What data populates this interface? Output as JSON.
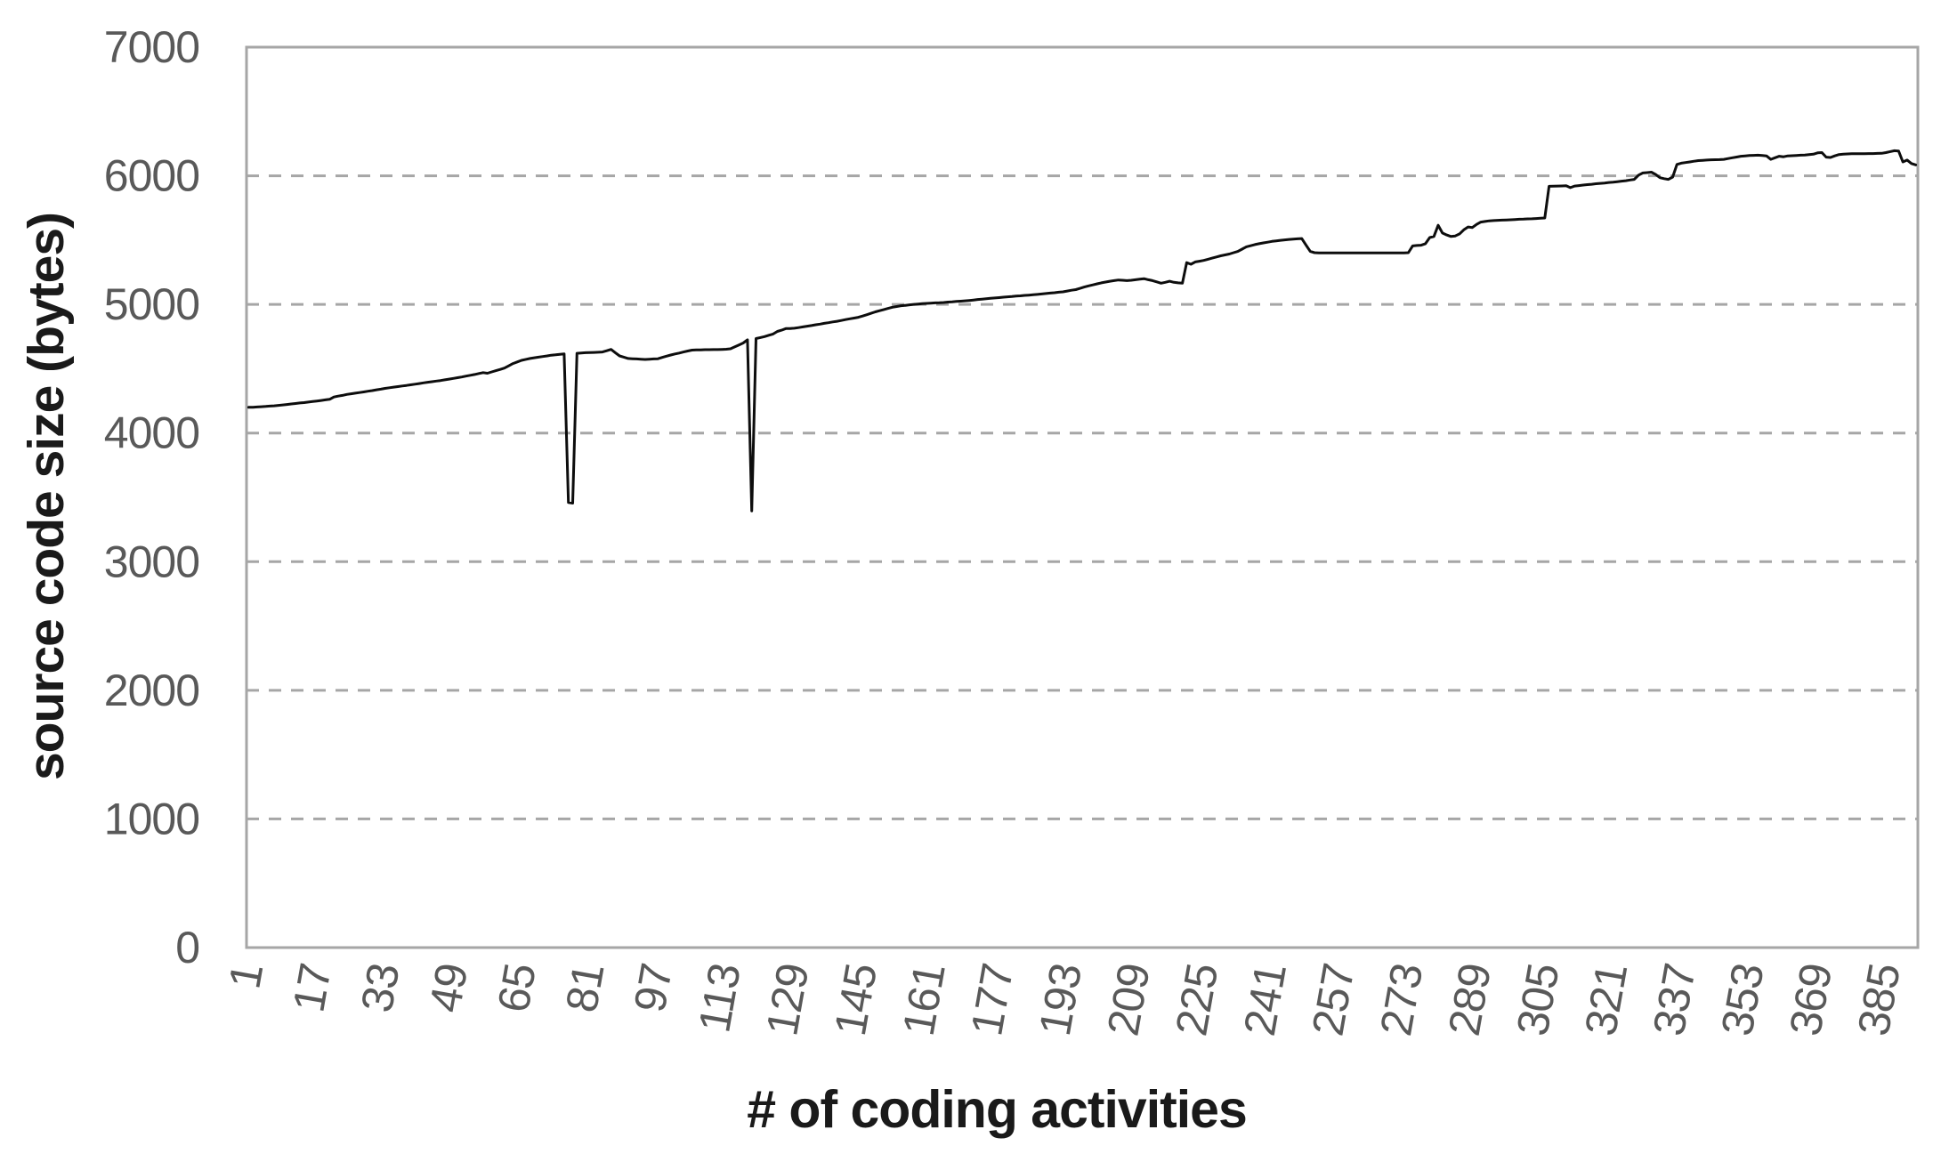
{
  "styles": {
    "background": "#ffffff",
    "line_color": "#0d0d0d",
    "grid_color": "#a6a6a6",
    "axis_color": "#a6a6a6",
    "tick_label_color": "#595959",
    "axis_title_color": "#1a1a1a"
  },
  "chart_data": {
    "type": "line",
    "title": "",
    "xlabel": "# of coding activities",
    "ylabel": "source code size (bytes)",
    "legend": "none",
    "grid": "horizontal-dashed",
    "ylim": [
      0,
      7000
    ],
    "y_ticks": [
      0,
      1000,
      2000,
      3000,
      4000,
      5000,
      6000,
      7000
    ],
    "x_tick_labels": [
      1,
      17,
      33,
      49,
      65,
      81,
      97,
      113,
      129,
      145,
      161,
      177,
      193,
      209,
      225,
      241,
      257,
      273,
      289,
      305,
      321,
      337,
      353,
      369,
      385
    ],
    "x_start": 1,
    "x_step": 1,
    "n_points": 392,
    "notable_features": {
      "start_value": 4200,
      "dip1": {
        "x": 76,
        "value": 3460
      },
      "dip2": {
        "x": 119,
        "value": 3395
      },
      "plateau_5400": {
        "x_range": [
          251,
          273
        ],
        "value": 5400
      },
      "jump_to_5900": {
        "x": 306
      },
      "end_value": 6085
    },
    "values": [
      4200,
      4201,
      4203,
      4205,
      4207,
      4210,
      4212,
      4215,
      4219,
      4222,
      4226,
      4230,
      4234,
      4237,
      4241,
      4245,
      4249,
      4253,
      4258,
      4262,
      4280,
      4287,
      4293,
      4300,
      4305,
      4310,
      4315,
      4320,
      4325,
      4330,
      4336,
      4341,
      4347,
      4352,
      4357,
      4361,
      4366,
      4370,
      4375,
      4380,
      4385,
      4390,
      4395,
      4399,
      4404,
      4408,
      4414,
      4419,
      4425,
      4430,
      4436,
      4443,
      4449,
      4455,
      4463,
      4470,
      4465,
      4475,
      4485,
      4495,
      4505,
      4522,
      4540,
      4553,
      4565,
      4573,
      4580,
      4585,
      4590,
      4595,
      4600,
      4605,
      4608,
      4612,
      4615,
      3460,
      3455,
      4620,
      4622,
      4625,
      4626,
      4627,
      4628,
      4630,
      4640,
      4650,
      4625,
      4600,
      4590,
      4580,
      4578,
      4576,
      4574,
      4572,
      4574,
      4576,
      4578,
      4588,
      4598,
      4607,
      4615,
      4622,
      4630,
      4638,
      4645,
      4646,
      4647,
      4648,
      4648,
      4649,
      4649,
      4650,
      4652,
      4655,
      4670,
      4685,
      4700,
      4725,
      3395,
      4735,
      4742,
      4750,
      4760,
      4770,
      4790,
      4800,
      4812,
      4813,
      4815,
      4820,
      4825,
      4831,
      4836,
      4842,
      4847,
      4853,
      4858,
      4864,
      4869,
      4875,
      4882,
      4888,
      4894,
      4900,
      4910,
      4920,
      4931,
      4942,
      4951,
      4960,
      4969,
      4978,
      4984,
      4990,
      4993,
      4997,
      5000,
      5003,
      5006,
      5008,
      5010,
      5012,
      5013,
      5015,
      5018,
      5020,
      5023,
      5025,
      5028,
      5031,
      5034,
      5038,
      5041,
      5044,
      5047,
      5050,
      5053,
      5056,
      5059,
      5062,
      5065,
      5067,
      5070,
      5072,
      5075,
      5078,
      5081,
      5085,
      5088,
      5091,
      5095,
      5098,
      5104,
      5110,
      5115,
      5125,
      5135,
      5144,
      5152,
      5160,
      5168,
      5174,
      5180,
      5185,
      5190,
      5188,
      5185,
      5188,
      5192,
      5196,
      5200,
      5192,
      5185,
      5175,
      5165,
      5172,
      5180,
      5172,
      5168,
      5165,
      5325,
      5312,
      5330,
      5336,
      5342,
      5351,
      5360,
      5369,
      5378,
      5385,
      5392,
      5402,
      5412,
      5430,
      5448,
      5456,
      5465,
      5472,
      5478,
      5484,
      5490,
      5494,
      5498,
      5502,
      5505,
      5508,
      5510,
      5512,
      5462,
      5412,
      5402,
      5400,
      5400,
      5400,
      5400,
      5400,
      5400,
      5400,
      5400,
      5400,
      5400,
      5400,
      5400,
      5400,
      5400,
      5400,
      5400,
      5400,
      5400,
      5400,
      5400,
      5400,
      5402,
      5455,
      5458,
      5460,
      5472,
      5520,
      5528,
      5615,
      5555,
      5540,
      5528,
      5532,
      5548,
      5580,
      5602,
      5598,
      5622,
      5640,
      5645,
      5650,
      5652,
      5654,
      5655,
      5657,
      5658,
      5660,
      5662,
      5663,
      5665,
      5666,
      5668,
      5670,
      5672,
      5918,
      5919,
      5920,
      5921,
      5922,
      5908,
      5920,
      5924,
      5928,
      5931,
      5934,
      5938,
      5941,
      5944,
      5948,
      5951,
      5954,
      5958,
      5962,
      5967,
      5972,
      6005,
      6022,
      6025,
      6028,
      6010,
      5985,
      5978,
      5972,
      5990,
      6088,
      6098,
      6103,
      6108,
      6113,
      6118,
      6120,
      6122,
      6124,
      6125,
      6126,
      6128,
      6134,
      6140,
      6146,
      6152,
      6155,
      6158,
      6159,
      6160,
      6158,
      6155,
      6128,
      6140,
      6152,
      6148,
      6155,
      6156,
      6158,
      6160,
      6162,
      6165,
      6168,
      6178,
      6180,
      6145,
      6142,
      6155,
      6165,
      6168,
      6170,
      6171,
      6172,
      6172,
      6172,
      6173,
      6173,
      6174,
      6175,
      6180,
      6188,
      6195,
      6192,
      6108,
      6122,
      6095,
      6085
    ]
  }
}
